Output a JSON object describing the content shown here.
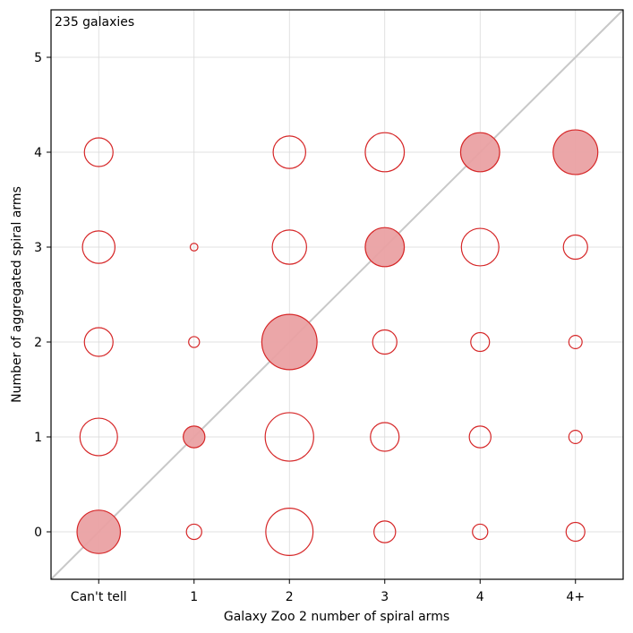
{
  "chart_data": {
    "type": "scatter",
    "xlabel": "Galaxy Zoo 2 number of spiral arms",
    "ylabel": "Number of aggregated spiral arms",
    "x_categories": [
      "Can't tell",
      "1",
      "2",
      "3",
      "4",
      "4+"
    ],
    "y_ticks": [
      "0",
      "1",
      "2",
      "3",
      "4",
      "5"
    ],
    "xlim": [
      -0.5,
      5.5
    ],
    "ylim": [
      -0.5,
      5.5
    ],
    "grid": true,
    "annotation": "235 galaxies",
    "diagonal_line": true,
    "colors": {
      "marker_edge": "#d62728",
      "marker_fill": "#eaa1a3",
      "diagonal": "#c8c8c8",
      "grid": "#d9d9d9"
    },
    "points": [
      {
        "x": 0,
        "y": 0,
        "count": 16,
        "highlighted": true
      },
      {
        "x": 0,
        "y": 1,
        "count": 12,
        "highlighted": false
      },
      {
        "x": 0,
        "y": 2,
        "count": 7,
        "highlighted": false
      },
      {
        "x": 0,
        "y": 3,
        "count": 9,
        "highlighted": false
      },
      {
        "x": 0,
        "y": 4,
        "count": 7,
        "highlighted": false
      },
      {
        "x": 1,
        "y": 0,
        "count": 2,
        "highlighted": false
      },
      {
        "x": 1,
        "y": 1,
        "count": 4,
        "highlighted": true
      },
      {
        "x": 1,
        "y": 2,
        "count": 1,
        "highlighted": false
      },
      {
        "x": 1,
        "y": 3,
        "count": 0.5,
        "highlighted": false
      },
      {
        "x": 2,
        "y": 0,
        "count": 19,
        "highlighted": false
      },
      {
        "x": 2,
        "y": 1,
        "count": 20,
        "highlighted": false
      },
      {
        "x": 2,
        "y": 2,
        "count": 26,
        "highlighted": true
      },
      {
        "x": 2,
        "y": 3,
        "count": 10,
        "highlighted": false
      },
      {
        "x": 2,
        "y": 4,
        "count": 9,
        "highlighted": false
      },
      {
        "x": 3,
        "y": 0,
        "count": 4,
        "highlighted": false
      },
      {
        "x": 3,
        "y": 1,
        "count": 7,
        "highlighted": false
      },
      {
        "x": 3,
        "y": 2,
        "count": 5,
        "highlighted": false
      },
      {
        "x": 3,
        "y": 3,
        "count": 13,
        "highlighted": true
      },
      {
        "x": 3,
        "y": 4,
        "count": 13,
        "highlighted": false
      },
      {
        "x": 4,
        "y": 0,
        "count": 2,
        "highlighted": false
      },
      {
        "x": 4,
        "y": 1,
        "count": 4,
        "highlighted": false
      },
      {
        "x": 4,
        "y": 2,
        "count": 3,
        "highlighted": false
      },
      {
        "x": 4,
        "y": 3,
        "count": 12,
        "highlighted": false
      },
      {
        "x": 4,
        "y": 4,
        "count": 13,
        "highlighted": true
      },
      {
        "x": 5,
        "y": 0,
        "count": 3,
        "highlighted": false
      },
      {
        "x": 5,
        "y": 1,
        "count": 1.5,
        "highlighted": false
      },
      {
        "x": 5,
        "y": 2,
        "count": 1.5,
        "highlighted": false
      },
      {
        "x": 5,
        "y": 3,
        "count": 5,
        "highlighted": false
      },
      {
        "x": 5,
        "y": 4,
        "count": 17,
        "highlighted": true
      }
    ]
  }
}
